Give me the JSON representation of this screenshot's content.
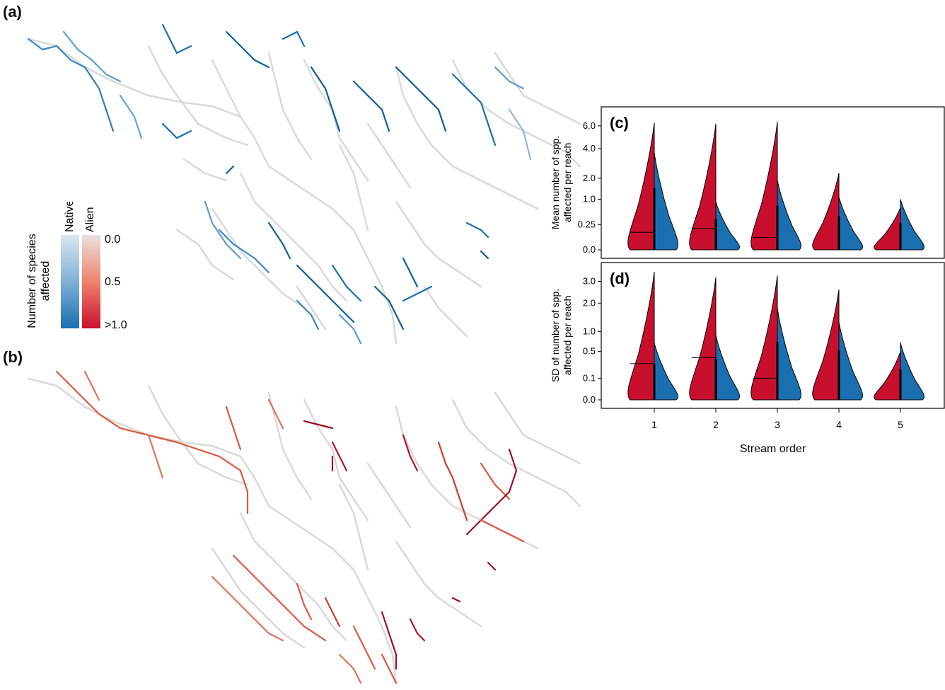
{
  "panels": {
    "a": "(a)",
    "b": "(b)",
    "c": "(c)",
    "d": "(d)"
  },
  "legend": {
    "title_line1": "Number of species",
    "title_line2": "affected",
    "native_label": "Native",
    "alien_label": "Alien",
    "ticks": [
      "0.0",
      "0.5",
      ">1.0"
    ],
    "native_colors": [
      "#dde6ee",
      "#1a6fb0"
    ],
    "alien_colors": [
      "#e8e2e0",
      "#c8102e"
    ]
  },
  "colors": {
    "alien": "#c8102e",
    "native": "#1a6fb0",
    "river_base": "#d9d9d9"
  },
  "chart_data": [
    {
      "type": "violin",
      "panel": "(c)",
      "ylabel": "Mean number of spp.\naffected per reach",
      "xlabel": "",
      "y_scale": "square-root",
      "y_ticks": [
        "0.0",
        "0.25",
        "1.0",
        "2.0",
        "4.0",
        "6.0"
      ],
      "y_tick_values": [
        0.0,
        0.25,
        1.0,
        2.0,
        4.0,
        6.0
      ],
      "categories": [
        "1",
        "2",
        "3",
        "4",
        "5"
      ],
      "series": [
        {
          "name": "Alien",
          "max": [
            6.3,
            6.2,
            6.4,
            2.3,
            0.7
          ],
          "median": [
            0.12,
            0.18,
            0.06,
            0.0,
            0.0
          ]
        },
        {
          "name": "Native",
          "max": [
            3.7,
            0.9,
            1.9,
            1.1,
            1.0
          ],
          "median": [
            0.0,
            0.1,
            0.0,
            0.0,
            0.0
          ]
        }
      ]
    },
    {
      "type": "violin",
      "panel": "(d)",
      "ylabel": "SD of number of spp.\naffected per reach",
      "xlabel": "Stream order",
      "y_scale": "square-root",
      "y_ticks": [
        "0.0",
        "0.1",
        "0.5",
        "1.0",
        "2.0",
        "3.0"
      ],
      "y_tick_values": [
        0.0,
        0.1,
        0.5,
        1.0,
        2.0,
        3.0
      ],
      "categories": [
        "1",
        "2",
        "3",
        "4",
        "5"
      ],
      "series": [
        {
          "name": "Alien",
          "max": [
            3.5,
            3.2,
            3.3,
            2.6,
            0.5
          ],
          "median": [
            0.28,
            0.38,
            0.1,
            0.0,
            0.0
          ]
        },
        {
          "name": "Native",
          "max": [
            0.7,
            0.9,
            1.8,
            1.3,
            0.7
          ],
          "median": [
            0.0,
            0.0,
            0.0,
            0.0,
            0.0
          ]
        }
      ]
    }
  ]
}
